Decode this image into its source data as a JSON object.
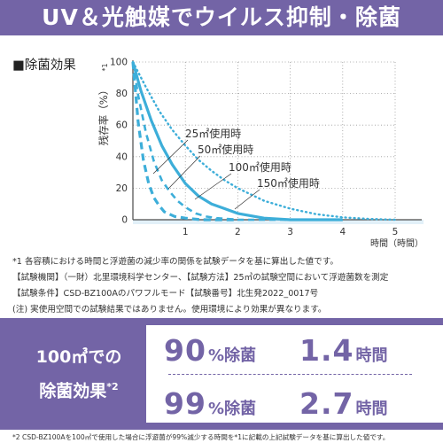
{
  "header": {
    "title": "UV＆光触媒でウイルス抑制・除菌"
  },
  "section_title": "■除菌効果",
  "chart_data": {
    "type": "line",
    "ylabel": "残存率（%）",
    "ylabel_note": "*1",
    "xlabel": "時間（時間）",
    "xlim": [
      0,
      5
    ],
    "ylim": [
      0,
      100
    ],
    "x_ticks": [
      "0",
      "1",
      "2",
      "3",
      "4",
      "5"
    ],
    "y_ticks": [
      "0",
      "20",
      "40",
      "60",
      "80",
      "100"
    ],
    "grid": "dotted vertical and horizontal",
    "colors": {
      "line": "#3daed9",
      "axis": "#4a4a4a",
      "grid": "#9a9a9a",
      "band": "#e2f0f8"
    },
    "series": [
      {
        "name": "25㎡使用時",
        "style": "dashed-thick",
        "points": [
          [
            0,
            100
          ],
          [
            0.1,
            62
          ],
          [
            0.2,
            38
          ],
          [
            0.3,
            23
          ],
          [
            0.4,
            14
          ],
          [
            0.5,
            9
          ],
          [
            0.6,
            5
          ],
          [
            0.8,
            2
          ],
          [
            1.0,
            1
          ],
          [
            1.3,
            0
          ],
          [
            2.0,
            0
          ]
        ]
      },
      {
        "name": "50㎡使用時",
        "style": "dashed",
        "points": [
          [
            0,
            100
          ],
          [
            0.1,
            79
          ],
          [
            0.25,
            55
          ],
          [
            0.4,
            37
          ],
          [
            0.55,
            25
          ],
          [
            0.7,
            18
          ],
          [
            0.85,
            12
          ],
          [
            1.0,
            8
          ],
          [
            1.2,
            4
          ],
          [
            1.4,
            2
          ],
          [
            1.6,
            1
          ],
          [
            2.0,
            0
          ],
          [
            3.0,
            0
          ]
        ]
      },
      {
        "name": "100㎡使用時",
        "style": "solid",
        "points": [
          [
            0,
            100
          ],
          [
            0.15,
            82
          ],
          [
            0.35,
            63
          ],
          [
            0.55,
            47
          ],
          [
            0.75,
            35
          ],
          [
            1.0,
            23
          ],
          [
            1.25,
            15
          ],
          [
            1.5,
            10
          ],
          [
            1.75,
            7
          ],
          [
            2.0,
            4
          ],
          [
            2.5,
            1
          ],
          [
            3.0,
            0
          ],
          [
            4.0,
            0
          ]
        ]
      },
      {
        "name": "150㎡使用時",
        "style": "dotted",
        "points": [
          [
            0,
            100
          ],
          [
            0.25,
            84
          ],
          [
            0.5,
            69
          ],
          [
            0.75,
            57
          ],
          [
            1.0,
            47
          ],
          [
            1.25,
            38
          ],
          [
            1.5,
            31
          ],
          [
            1.75,
            25
          ],
          [
            2.0,
            20
          ],
          [
            2.5,
            12
          ],
          [
            3.0,
            7
          ],
          [
            3.5,
            3.5
          ],
          [
            4.0,
            1.5
          ],
          [
            4.5,
            0.5
          ],
          [
            5.0,
            0
          ]
        ]
      }
    ]
  },
  "notes": [
    "*1 各容積における時間と浮遊菌の減少率の関係を試験データを基に算出した値です。",
    "【試験機関】（一財）北里環境科学センター、【試験方法】25㎥の試験空間において浮遊菌数を測定",
    "【試験条件】CSD-BZ100Aのパワフルモード【試験番号】北生発2022_0017号",
    "(注) 実使用空間での試験結果ではありません。使用環境により効果が異なります。"
  ],
  "summary": {
    "label_line1": "100㎥での",
    "label_line2": "除菌効果",
    "label_sup": "*2",
    "stats": [
      {
        "value": "90",
        "unit": "%除菌"
      },
      {
        "value": "1.4",
        "unit": "時間"
      },
      {
        "value": "99",
        "unit": "%除菌"
      },
      {
        "value": "2.7",
        "unit": "時間"
      }
    ]
  },
  "footnote": "*2 CSD-BZ100Aを100㎥で使用した場合に浮遊菌が99%減少する時間を*1に記載の上記試験データを基に算出した値です。"
}
